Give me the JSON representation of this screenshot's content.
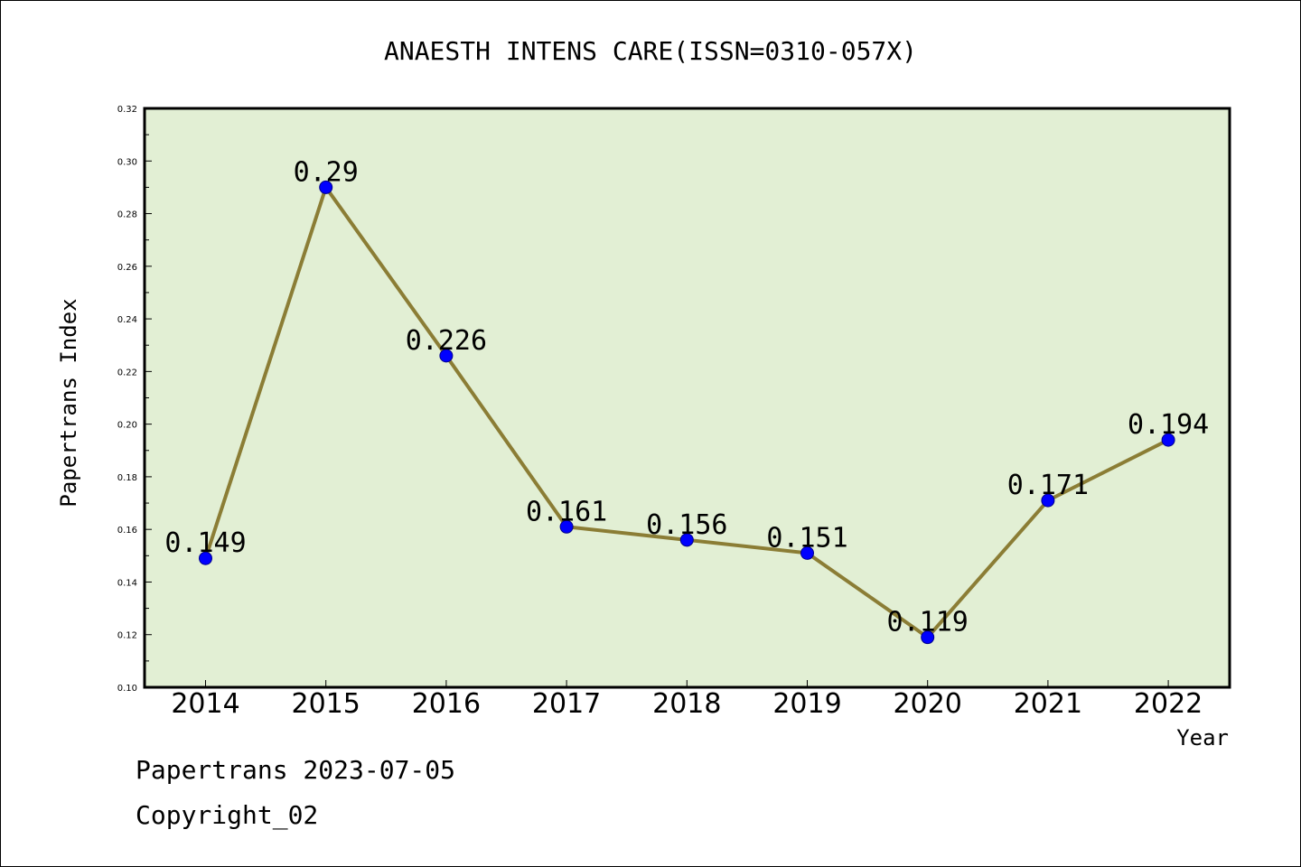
{
  "chart_data": {
    "type": "line",
    "title": "ANAESTH INTENS CARE(ISSN=0310-057X)",
    "xlabel": "Year",
    "ylabel": "Papertrans Index",
    "categories": [
      "2014",
      "2015",
      "2016",
      "2017",
      "2018",
      "2019",
      "2020",
      "2021",
      "2022"
    ],
    "series": [
      {
        "values": [
          0.149,
          0.29,
          0.226,
          0.161,
          0.156,
          0.151,
          0.119,
          0.171,
          0.194
        ],
        "labels": [
          "0.149",
          "0.29",
          "0.226",
          "0.161",
          "0.156",
          "0.151",
          "0.119",
          "0.171",
          "0.194"
        ]
      }
    ],
    "ylim": [
      0.1,
      0.32
    ],
    "yticks": [
      "0.10",
      "0.12",
      "0.14",
      "0.16",
      "0.18",
      "0.20",
      "0.22",
      "0.24",
      "0.26",
      "0.28",
      "0.30",
      "0.32"
    ],
    "grid": false,
    "colors": {
      "plot_background": "#e2efd4",
      "line": "#8b7d35",
      "marker": "#0000ff"
    }
  },
  "footer": {
    "line1": "Papertrans 2023-07-05",
    "line2": "Copyright_02"
  }
}
